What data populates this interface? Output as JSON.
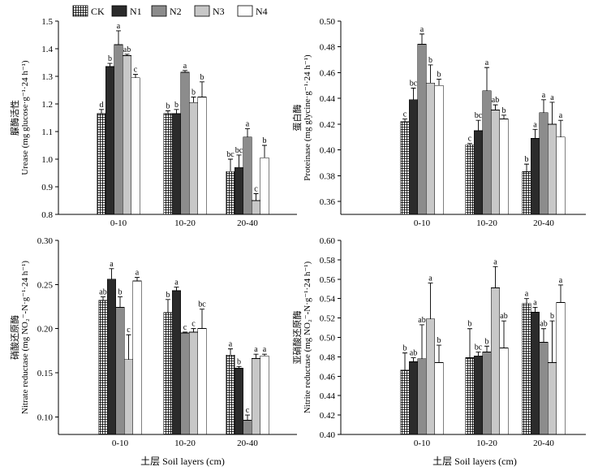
{
  "legend": {
    "items": [
      {
        "label": "CK",
        "pattern": "grid"
      },
      {
        "label": "N1",
        "pattern": "dark"
      },
      {
        "label": "N2",
        "pattern": "mid"
      },
      {
        "label": "N3",
        "pattern": "light"
      },
      {
        "label": "N4",
        "pattern": "white"
      }
    ]
  },
  "xlabel": "土层 Soil layers (cm)",
  "chart_data": [
    {
      "type": "bar",
      "id": "urease",
      "ylabel_cn": "脲酶活性",
      "ylabel_en": "Urease (mg glucose·g⁻¹·24 h⁻¹)",
      "categories": [
        "0-10",
        "10-20",
        "20-40"
      ],
      "ylim": [
        0.8,
        1.5
      ],
      "yticks": [
        0.8,
        0.9,
        1.0,
        1.1,
        1.2,
        1.3,
        1.4,
        1.5
      ],
      "tick_decimals": 1,
      "series": [
        {
          "name": "CK",
          "values": [
            1.165,
            1.165,
            0.955
          ],
          "errors": [
            0.015,
            0.01,
            0.045
          ],
          "letters": [
            "d",
            "b",
            "bc"
          ]
        },
        {
          "name": "N1",
          "values": [
            1.335,
            1.165,
            0.97
          ],
          "errors": [
            0.012,
            0.015,
            0.045
          ],
          "letters": [
            "b",
            "b",
            "bc"
          ]
        },
        {
          "name": "N2",
          "values": [
            1.415,
            1.315,
            1.08
          ],
          "errors": [
            0.05,
            0.006,
            0.03
          ],
          "letters": [
            "a",
            "a",
            "a"
          ]
        },
        {
          "name": "N3",
          "values": [
            1.375,
            1.205,
            0.85
          ],
          "errors": [
            0.005,
            0.02,
            0.025
          ],
          "letters": [
            "ab",
            "b",
            "c"
          ]
        },
        {
          "name": "N4",
          "values": [
            1.295,
            1.225,
            1.005
          ],
          "errors": [
            0.012,
            0.055,
            0.045
          ],
          "letters": [
            "c",
            "b",
            "b"
          ]
        }
      ]
    },
    {
      "type": "bar",
      "id": "protease",
      "ylabel_cn": "蛋白酶",
      "ylabel_en": "Proteinase (mg glycine·g⁻¹·24 h⁻¹)",
      "categories": [
        "0-10",
        "10-20",
        "20-40"
      ],
      "ylim": [
        0.35,
        0.5
      ],
      "yticks": [
        0.36,
        0.38,
        0.4,
        0.42,
        0.44,
        0.46,
        0.48,
        0.5
      ],
      "tick_decimals": 2,
      "series": [
        {
          "name": "CK",
          "values": [
            0.422,
            0.404,
            0.383
          ],
          "errors": [
            0.002,
            0.001,
            0.006
          ],
          "letters": [
            "c",
            "c",
            "b"
          ]
        },
        {
          "name": "N1",
          "values": [
            0.439,
            0.415,
            0.409
          ],
          "errors": [
            0.009,
            0.008,
            0.007
          ],
          "letters": [
            "bc",
            "bc",
            "a"
          ]
        },
        {
          "name": "N2",
          "values": [
            0.482,
            0.446,
            0.429
          ],
          "errors": [
            0.008,
            0.018,
            0.01
          ],
          "letters": [
            "a",
            "a",
            "a"
          ]
        },
        {
          "name": "N3",
          "values": [
            0.452,
            0.431,
            0.42
          ],
          "errors": [
            0.014,
            0.004,
            0.017
          ],
          "letters": [
            "b",
            "ab",
            "a"
          ]
        },
        {
          "name": "N4",
          "values": [
            0.45,
            0.424,
            0.41
          ],
          "errors": [
            0.005,
            0.003,
            0.013
          ],
          "letters": [
            "b",
            "b",
            "a"
          ]
        }
      ]
    },
    {
      "type": "bar",
      "id": "nitrate",
      "ylabel_cn": "硝酸还原酶",
      "ylabel_en": "Nitrate reductase (mg NO₂⁻-N·g⁻¹·24 h⁻¹)",
      "categories": [
        "0-10",
        "10-20",
        "20-40"
      ],
      "ylim": [
        0.08,
        0.3
      ],
      "yticks": [
        0.1,
        0.15,
        0.2,
        0.25,
        0.3
      ],
      "tick_decimals": 2,
      "series": [
        {
          "name": "CK",
          "values": [
            0.232,
            0.218,
            0.17
          ],
          "errors": [
            0.004,
            0.015,
            0.007
          ],
          "letters": [
            "ab",
            "b",
            "a"
          ]
        },
        {
          "name": "N1",
          "values": [
            0.256,
            0.243,
            0.155
          ],
          "errors": [
            0.012,
            0.004,
            0.002
          ],
          "letters": [
            "a",
            "a",
            "b"
          ]
        },
        {
          "name": "N2",
          "values": [
            0.224,
            0.195,
            0.096
          ],
          "errors": [
            0.012,
            0.001,
            0.006
          ],
          "letters": [
            "b",
            "c",
            "c"
          ]
        },
        {
          "name": "N3",
          "values": [
            0.165,
            0.196,
            0.166
          ],
          "errors": [
            0.028,
            0.004,
            0.005
          ],
          "letters": [
            "c",
            "c",
            "a"
          ]
        },
        {
          "name": "N4",
          "values": [
            0.254,
            0.2,
            0.169
          ],
          "errors": [
            0.004,
            0.022,
            0.002
          ],
          "letters": [
            "a",
            "bc",
            "a"
          ]
        }
      ]
    },
    {
      "type": "bar",
      "id": "nitrite",
      "ylabel_cn": "亚硝酸还原酶",
      "ylabel_en": "Nitrite reductase (mg NO₂⁻-N·g⁻¹·24 h⁻¹)",
      "categories": [
        "0-10",
        "10-20",
        "20-40"
      ],
      "ylim": [
        0.4,
        0.6
      ],
      "yticks": [
        0.4,
        0.42,
        0.44,
        0.46,
        0.48,
        0.5,
        0.52,
        0.54,
        0.56,
        0.58,
        0.6
      ],
      "tick_decimals": 2,
      "series": [
        {
          "name": "CK",
          "values": [
            0.466,
            0.479,
            0.535
          ],
          "errors": [
            0.018,
            0.03,
            0.005
          ],
          "letters": [
            "b",
            "b",
            "a"
          ]
        },
        {
          "name": "N1",
          "values": [
            0.475,
            0.481,
            0.526
          ],
          "errors": [
            0.004,
            0.004,
            0.005
          ],
          "letters": [
            "ab",
            "bc",
            "a"
          ]
        },
        {
          "name": "N2",
          "values": [
            0.478,
            0.485,
            0.495
          ],
          "errors": [
            0.035,
            0.006,
            0.014
          ],
          "letters": [
            "ab",
            "b",
            "ab"
          ]
        },
        {
          "name": "N3",
          "values": [
            0.519,
            0.551,
            0.474
          ],
          "errors": [
            0.037,
            0.022,
            0.043
          ],
          "letters": [
            "a",
            "a",
            "b"
          ]
        },
        {
          "name": "N4",
          "values": [
            0.474,
            0.489,
            0.536
          ],
          "errors": [
            0.018,
            0.028,
            0.018
          ],
          "letters": [
            "b",
            "ab",
            "a"
          ]
        }
      ]
    }
  ]
}
